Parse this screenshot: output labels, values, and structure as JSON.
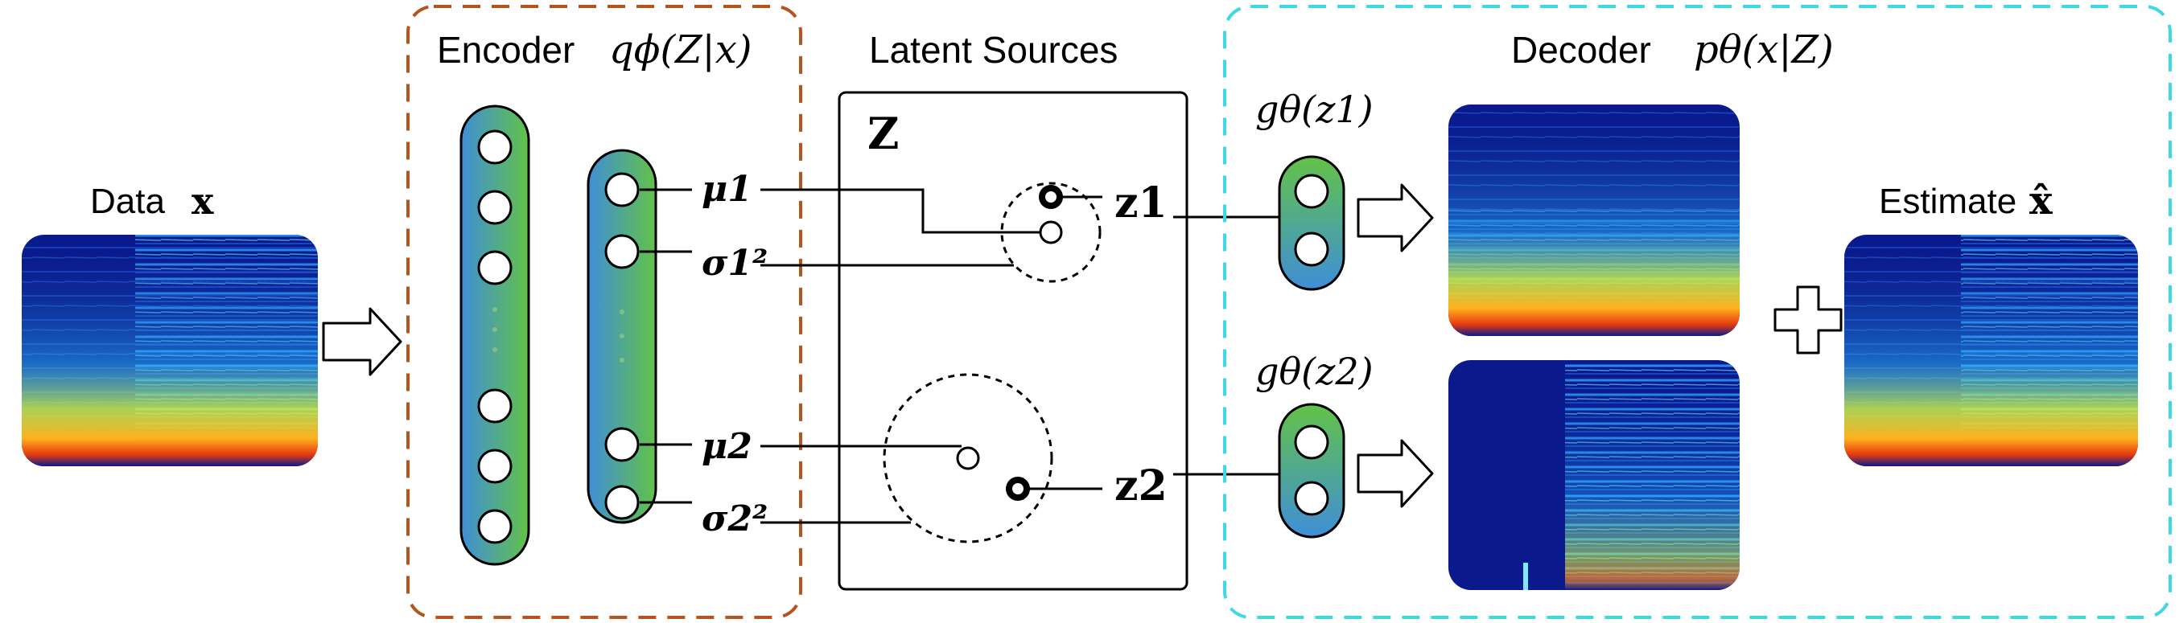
{
  "data_block": {
    "label": "Data",
    "var": "x"
  },
  "encoder": {
    "label": "Encoder",
    "formula": "qϕ(Z|x)",
    "outputs": {
      "mu1": "μ1",
      "sigma1": "σ1²",
      "mu2": "μ2",
      "sigma2": "σ2²"
    }
  },
  "latent": {
    "title": "Latent Sources",
    "panel_label": "Z",
    "z1": "z1",
    "z2": "z2"
  },
  "decoder": {
    "label": "Decoder",
    "formula": "pθ(x|Z)",
    "g1": "gθ(z1)",
    "g2": "gθ(z2)"
  },
  "estimate": {
    "label": "Estimate",
    "var": "x̂"
  },
  "colors": {
    "encoder_border": "#b5541c",
    "decoder_border": "#3fd9e6",
    "net_blue": "#3d8fd6",
    "net_green": "#5fbf4a",
    "spec_background": "#0a1a8c"
  },
  "icons": [
    "right-arrow-icon",
    "plus-icon"
  ]
}
